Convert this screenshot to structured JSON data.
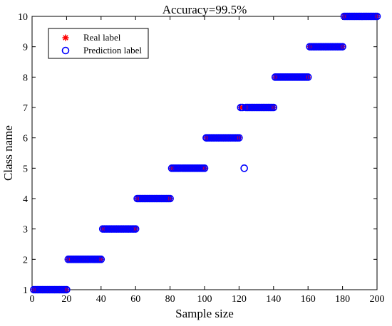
{
  "chart_data": {
    "type": "scatter",
    "title": "Accuracy=99.5%",
    "xlabel": "Sample size",
    "ylabel": "Class name",
    "xlim": [
      0,
      200
    ],
    "ylim": [
      1,
      10
    ],
    "x_ticks": [
      "0",
      "20",
      "40",
      "60",
      "80",
      "100",
      "120",
      "140",
      "160",
      "180",
      "200"
    ],
    "y_ticks": [
      "1",
      "2",
      "3",
      "4",
      "5",
      "6",
      "7",
      "8",
      "9",
      "10"
    ],
    "grid": false,
    "legend_position": "top-left",
    "samples_per_class": 20,
    "classes": [
      1,
      2,
      3,
      4,
      5,
      6,
      7,
      8,
      9,
      10
    ],
    "series": [
      {
        "name": "Real label",
        "marker": "asterisk",
        "color": "#ff0000",
        "values": [
          1,
          1,
          1,
          1,
          1,
          1,
          1,
          1,
          1,
          1,
          1,
          1,
          1,
          1,
          1,
          1,
          1,
          1,
          1,
          1,
          2,
          2,
          2,
          2,
          2,
          2,
          2,
          2,
          2,
          2,
          2,
          2,
          2,
          2,
          2,
          2,
          2,
          2,
          2,
          2,
          3,
          3,
          3,
          3,
          3,
          3,
          3,
          3,
          3,
          3,
          3,
          3,
          3,
          3,
          3,
          3,
          3,
          3,
          3,
          3,
          4,
          4,
          4,
          4,
          4,
          4,
          4,
          4,
          4,
          4,
          4,
          4,
          4,
          4,
          4,
          4,
          4,
          4,
          4,
          4,
          5,
          5,
          5,
          5,
          5,
          5,
          5,
          5,
          5,
          5,
          5,
          5,
          5,
          5,
          5,
          5,
          5,
          5,
          5,
          5,
          6,
          6,
          6,
          6,
          6,
          6,
          6,
          6,
          6,
          6,
          6,
          6,
          6,
          6,
          6,
          6,
          6,
          6,
          6,
          6,
          7,
          7,
          7,
          7,
          7,
          7,
          7,
          7,
          7,
          7,
          7,
          7,
          7,
          7,
          7,
          7,
          7,
          7,
          7,
          7,
          8,
          8,
          8,
          8,
          8,
          8,
          8,
          8,
          8,
          8,
          8,
          8,
          8,
          8,
          8,
          8,
          8,
          8,
          8,
          8,
          9,
          9,
          9,
          9,
          9,
          9,
          9,
          9,
          9,
          9,
          9,
          9,
          9,
          9,
          9,
          9,
          9,
          9,
          9,
          9,
          10,
          10,
          10,
          10,
          10,
          10,
          10,
          10,
          10,
          10,
          10,
          10,
          10,
          10,
          10,
          10,
          10,
          10,
          10,
          10
        ]
      },
      {
        "name": "Prediction label",
        "marker": "circle",
        "color": "#0000ff",
        "values": [
          1,
          1,
          1,
          1,
          1,
          1,
          1,
          1,
          1,
          1,
          1,
          1,
          1,
          1,
          1,
          1,
          1,
          1,
          1,
          1,
          2,
          2,
          2,
          2,
          2,
          2,
          2,
          2,
          2,
          2,
          2,
          2,
          2,
          2,
          2,
          2,
          2,
          2,
          2,
          2,
          3,
          3,
          3,
          3,
          3,
          3,
          3,
          3,
          3,
          3,
          3,
          3,
          3,
          3,
          3,
          3,
          3,
          3,
          3,
          3,
          4,
          4,
          4,
          4,
          4,
          4,
          4,
          4,
          4,
          4,
          4,
          4,
          4,
          4,
          4,
          4,
          4,
          4,
          4,
          4,
          5,
          5,
          5,
          5,
          5,
          5,
          5,
          5,
          5,
          5,
          5,
          5,
          5,
          5,
          5,
          5,
          5,
          5,
          5,
          5,
          6,
          6,
          6,
          6,
          6,
          6,
          6,
          6,
          6,
          6,
          6,
          6,
          6,
          6,
          6,
          6,
          6,
          6,
          6,
          6,
          7,
          7,
          5,
          7,
          7,
          7,
          7,
          7,
          7,
          7,
          7,
          7,
          7,
          7,
          7,
          7,
          7,
          7,
          7,
          7,
          8,
          8,
          8,
          8,
          8,
          8,
          8,
          8,
          8,
          8,
          8,
          8,
          8,
          8,
          8,
          8,
          8,
          8,
          8,
          8,
          9,
          9,
          9,
          9,
          9,
          9,
          9,
          9,
          9,
          9,
          9,
          9,
          9,
          9,
          9,
          9,
          9,
          9,
          9,
          9,
          10,
          10,
          10,
          10,
          10,
          10,
          10,
          10,
          10,
          10,
          10,
          10,
          10,
          10,
          10,
          10,
          10,
          10,
          10,
          10
        ]
      }
    ]
  }
}
